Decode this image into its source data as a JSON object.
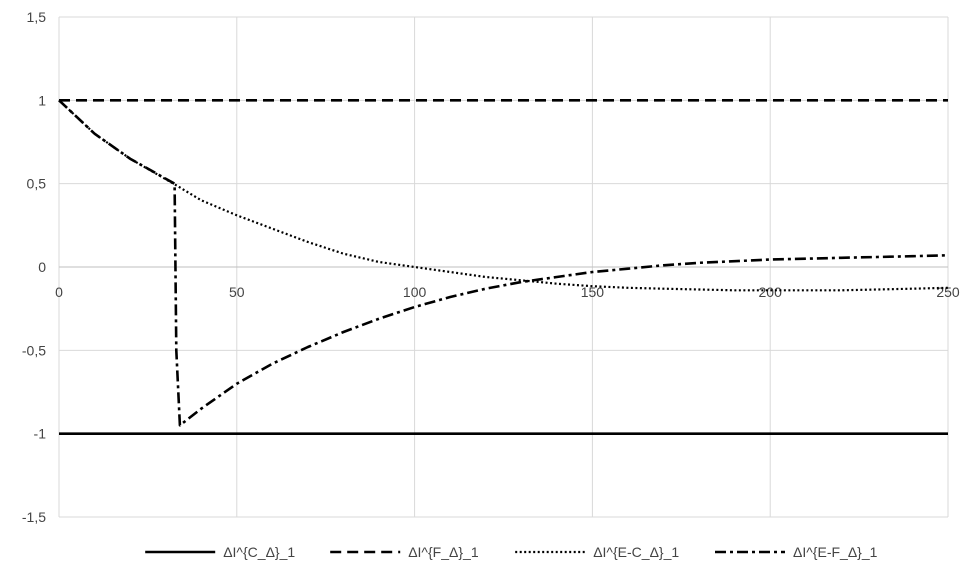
{
  "chart_data": {
    "type": "line",
    "title": "",
    "xlabel": "",
    "ylabel": "",
    "xlim": [
      0,
      250
    ],
    "ylim": [
      -1.5,
      1.5
    ],
    "x_ticks": [
      0,
      50,
      100,
      150,
      200,
      250
    ],
    "x_tick_labels": [
      "0",
      "50",
      "100",
      "150",
      "200",
      "250"
    ],
    "y_ticks": [
      1.5,
      1,
      0.5,
      0,
      -0.5,
      -1,
      -1.5
    ],
    "y_tick_labels": [
      "1,5",
      "1",
      "0,5",
      "0",
      "-0,5",
      "-1",
      "-1,5"
    ],
    "grid": true,
    "legend_position": "bottom",
    "series": [
      {
        "name": "ΔI^{C_Δ}_1",
        "style": "solid",
        "color": "#000000",
        "x": [
          0,
          250
        ],
        "y": [
          -1,
          -1
        ]
      },
      {
        "name": "ΔI^{F_Δ}_1",
        "style": "dashed",
        "color": "#000000",
        "x": [
          0,
          250
        ],
        "y": [
          1,
          1
        ]
      },
      {
        "name": "ΔI^{E-C_Δ}_1",
        "style": "dotted",
        "color": "#000000",
        "x": [
          0,
          10,
          20,
          33,
          40,
          50,
          60,
          70,
          80,
          90,
          100,
          110,
          120,
          130,
          140,
          150,
          160,
          170,
          180,
          190,
          200,
          210,
          220,
          230,
          240,
          250
        ],
        "y": [
          1,
          0.8,
          0.65,
          0.49,
          0.4,
          0.31,
          0.23,
          0.15,
          0.08,
          0.03,
          0,
          -0.03,
          -0.06,
          -0.08,
          -0.1,
          -0.115,
          -0.125,
          -0.13,
          -0.135,
          -0.14,
          -0.14,
          -0.14,
          -0.14,
          -0.135,
          -0.13,
          -0.125
        ]
      },
      {
        "name": "ΔI^{E-F_Δ}_1",
        "style": "dash-dot",
        "color": "#000000",
        "x": [
          0,
          10,
          20,
          30,
          32.5,
          33,
          34,
          40,
          50,
          60,
          70,
          80,
          90,
          100,
          110,
          120,
          130,
          140,
          150,
          160,
          170,
          180,
          190,
          200,
          210,
          220,
          230,
          240,
          250
        ],
        "y": [
          1,
          0.8,
          0.65,
          0.53,
          0.5,
          -0.5,
          -0.95,
          -0.85,
          -0.7,
          -0.58,
          -0.48,
          -0.39,
          -0.31,
          -0.24,
          -0.18,
          -0.13,
          -0.09,
          -0.06,
          -0.03,
          -0.01,
          0.01,
          0.025,
          0.035,
          0.045,
          0.05,
          0.055,
          0.06,
          0.065,
          0.07
        ]
      }
    ]
  }
}
